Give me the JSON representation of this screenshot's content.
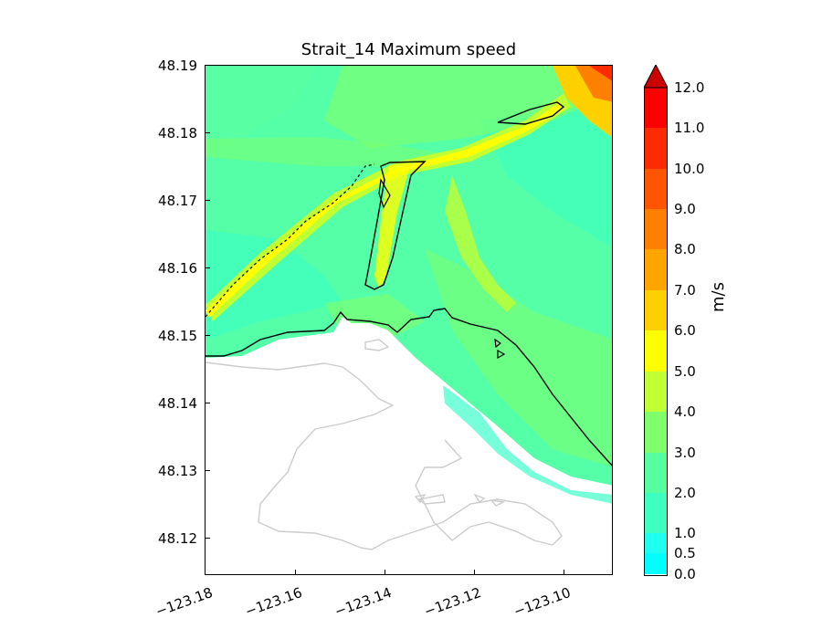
{
  "title": "Strait_14 Maximum speed",
  "colorbar": {
    "units": "m/s",
    "tick_labels": [
      "0.0",
      "0.5",
      "1.0",
      "2.0",
      "3.0",
      "4.0",
      "5.0",
      "6.0",
      "7.0",
      "8.0",
      "9.0",
      "10.0",
      "11.0",
      "12.0"
    ],
    "levels": [
      0.0,
      0.5,
      1.0,
      2.0,
      3.0,
      4.0,
      5.0,
      6.0,
      7.0,
      8.0,
      9.0,
      10.0,
      11.0,
      12.0
    ],
    "colors": [
      "#00ffff",
      "#1ffff0",
      "#3cffc0",
      "#55ffa0",
      "#7fff6a",
      "#bfff33",
      "#ffff00",
      "#ffd000",
      "#ffa500",
      "#ff7f00",
      "#ff5500",
      "#ff2a00",
      "#ff0000"
    ],
    "extend": "max"
  },
  "axes": {
    "y_ticks": [
      "48.19",
      "48.18",
      "48.17",
      "48.16",
      "48.15",
      "48.14",
      "48.13",
      "48.12"
    ],
    "x_ticks": [
      "−123.18",
      "−123.16",
      "−123.14",
      "−123.12",
      "−123.10"
    ]
  },
  "colors": {
    "land": "#ffffff",
    "coastline": "#000000",
    "land_outline": "#cccccc",
    "water_background": "#55ffa8",
    "slow_water": "#3cffc8",
    "jet_core": "#ffff00",
    "jet_fringe": "#bfff33"
  }
}
